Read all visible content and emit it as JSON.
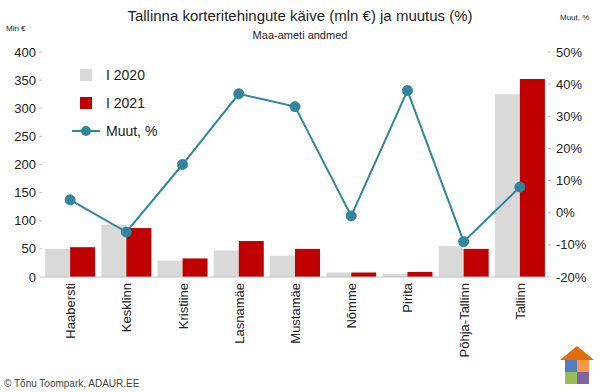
{
  "chart_data": {
    "type": "bar",
    "title": "Tallinna korteritehingute käive (mln €) ja muutus (%)",
    "subtitle": "Maa-ameti andmed",
    "ylabel": "Mln €",
    "y2label": "Muut, %",
    "annotations": [
      "© Tõnu Toompark, ADAUR.EE"
    ],
    "categories": [
      "Haabersti",
      "Kesklinn",
      "Kristiine",
      "Lasnamäe",
      "Mustamäe",
      "Nõmme",
      "Pirita",
      "Põhja-Tallinn",
      "Tallinn"
    ],
    "series": [
      {
        "name": "I 2020",
        "type": "bar",
        "color": "#d9d9d9",
        "values": [
          50,
          93,
          29,
          47,
          38,
          8,
          6,
          55,
          325
        ]
      },
      {
        "name": "I 2021",
        "type": "bar",
        "color": "#c00000",
        "values": [
          53,
          87,
          33,
          64,
          50,
          8,
          9,
          50,
          352
        ]
      },
      {
        "name": "Muut, %",
        "type": "line",
        "axis": "y2",
        "color": "#31859c",
        "marker": "circle",
        "line_style": "solid",
        "values": [
          4,
          -6,
          15,
          37,
          33,
          -1,
          38,
          -9,
          8
        ]
      }
    ],
    "ylim": [
      0,
      400
    ],
    "yticks": [
      0,
      50,
      100,
      150,
      200,
      250,
      300,
      350,
      400
    ],
    "y2lim": [
      -20,
      50
    ],
    "y2ticks": [
      {
        "value": -20,
        "label": "-20%"
      },
      {
        "value": -10,
        "label": "-10%"
      },
      {
        "value": 0,
        "label": "0%"
      },
      {
        "value": 10,
        "label": "10%"
      },
      {
        "value": 20,
        "label": "20%"
      },
      {
        "value": 30,
        "label": "30%"
      },
      {
        "value": 40,
        "label": "40%"
      },
      {
        "value": 50,
        "label": "50%"
      }
    ],
    "grid": false,
    "legend": "top-left"
  }
}
